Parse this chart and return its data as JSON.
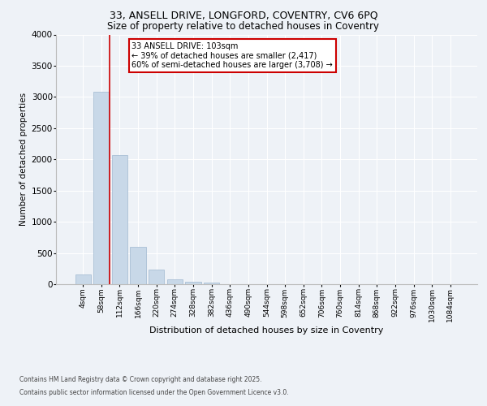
{
  "title_line1": "33, ANSELL DRIVE, LONGFORD, COVENTRY, CV6 6PQ",
  "title_line2": "Size of property relative to detached houses in Coventry",
  "xlabel": "Distribution of detached houses by size in Coventry",
  "ylabel": "Number of detached properties",
  "bar_color": "#c8d8e8",
  "bar_edge_color": "#a0b8d0",
  "categories": [
    "4sqm",
    "58sqm",
    "112sqm",
    "166sqm",
    "220sqm",
    "274sqm",
    "328sqm",
    "382sqm",
    "436sqm",
    "490sqm",
    "544sqm",
    "598sqm",
    "652sqm",
    "706sqm",
    "760sqm",
    "814sqm",
    "868sqm",
    "922sqm",
    "976sqm",
    "1030sqm",
    "1084sqm"
  ],
  "values": [
    150,
    3080,
    2070,
    600,
    240,
    80,
    40,
    30,
    0,
    0,
    0,
    0,
    0,
    0,
    0,
    0,
    0,
    0,
    0,
    0,
    0
  ],
  "ylim": [
    0,
    4000
  ],
  "yticks": [
    0,
    500,
    1000,
    1500,
    2000,
    2500,
    3000,
    3500,
    4000
  ],
  "annotation_title": "33 ANSELL DRIVE: 103sqm",
  "annotation_line1": "← 39% of detached houses are smaller (2,417)",
  "annotation_line2": "60% of semi-detached houses are larger (3,708) →",
  "annotation_box_color": "#ffffff",
  "annotation_box_edge": "#cc0000",
  "property_line_color": "#cc0000",
  "property_line_x": 1.45,
  "footer_line1": "Contains HM Land Registry data © Crown copyright and database right 2025.",
  "footer_line2": "Contains public sector information licensed under the Open Government Licence v3.0.",
  "background_color": "#eef2f7",
  "grid_color": "#ffffff",
  "title1_fontsize": 9,
  "title2_fontsize": 8.5,
  "xlabel_fontsize": 8,
  "ylabel_fontsize": 7.5,
  "tick_fontsize": 6.5,
  "ytick_fontsize": 7.5,
  "annotation_fontsize": 7,
  "footer_fontsize": 5.5
}
